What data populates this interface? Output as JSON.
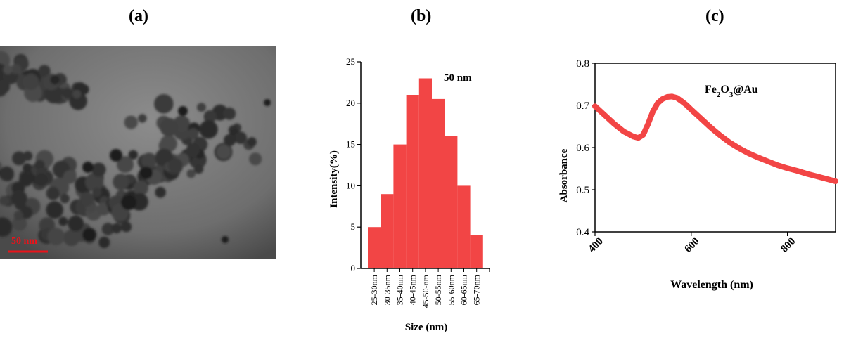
{
  "panels": {
    "a": "(a)",
    "b": "(b)",
    "c": "(c)"
  },
  "tem": {
    "scale_label": "50 nm",
    "scale_color": "#e8141b"
  },
  "chart_data": [
    {
      "type": "bar",
      "panel": "(b)",
      "annotation": "50 nm",
      "xlabel": "Size (nm)",
      "ylabel": "Intensity(%)",
      "categories": [
        "25-30nm",
        "30-35nm",
        "35-40nm",
        "40-45nm",
        "45-50-nm",
        "50-55nm",
        "55-60nm",
        "60-65nm",
        "65-70nm"
      ],
      "values": [
        5,
        9,
        15,
        21,
        23,
        20.5,
        16,
        10,
        4
      ],
      "ylim": [
        0,
        25
      ],
      "yticks": [
        0,
        5,
        10,
        15,
        20,
        25
      ],
      "color": "#f24545",
      "grid": false
    },
    {
      "type": "line",
      "panel": "(c)",
      "annotation": "Fe2O3@Au",
      "xlabel": "Wavelength (nm)",
      "ylabel": "Absorbance",
      "xlim": [
        400,
        900
      ],
      "ylim": [
        0.4,
        0.8
      ],
      "xticks": [
        400,
        600,
        800
      ],
      "yticks": [
        0.4,
        0.5,
        0.6,
        0.7,
        0.8
      ],
      "color": "#f24545",
      "grid": false,
      "x": [
        400,
        420,
        440,
        460,
        480,
        490,
        500,
        510,
        520,
        530,
        540,
        550,
        560,
        570,
        580,
        590,
        600,
        620,
        640,
        660,
        680,
        700,
        720,
        740,
        760,
        780,
        800,
        820,
        840,
        860,
        880,
        900
      ],
      "y": [
        0.698,
        0.677,
        0.656,
        0.638,
        0.626,
        0.623,
        0.63,
        0.655,
        0.685,
        0.705,
        0.715,
        0.72,
        0.721,
        0.718,
        0.71,
        0.701,
        0.69,
        0.669,
        0.648,
        0.629,
        0.612,
        0.598,
        0.586,
        0.576,
        0.567,
        0.558,
        0.551,
        0.545,
        0.538,
        0.532,
        0.526,
        0.52
      ]
    }
  ]
}
